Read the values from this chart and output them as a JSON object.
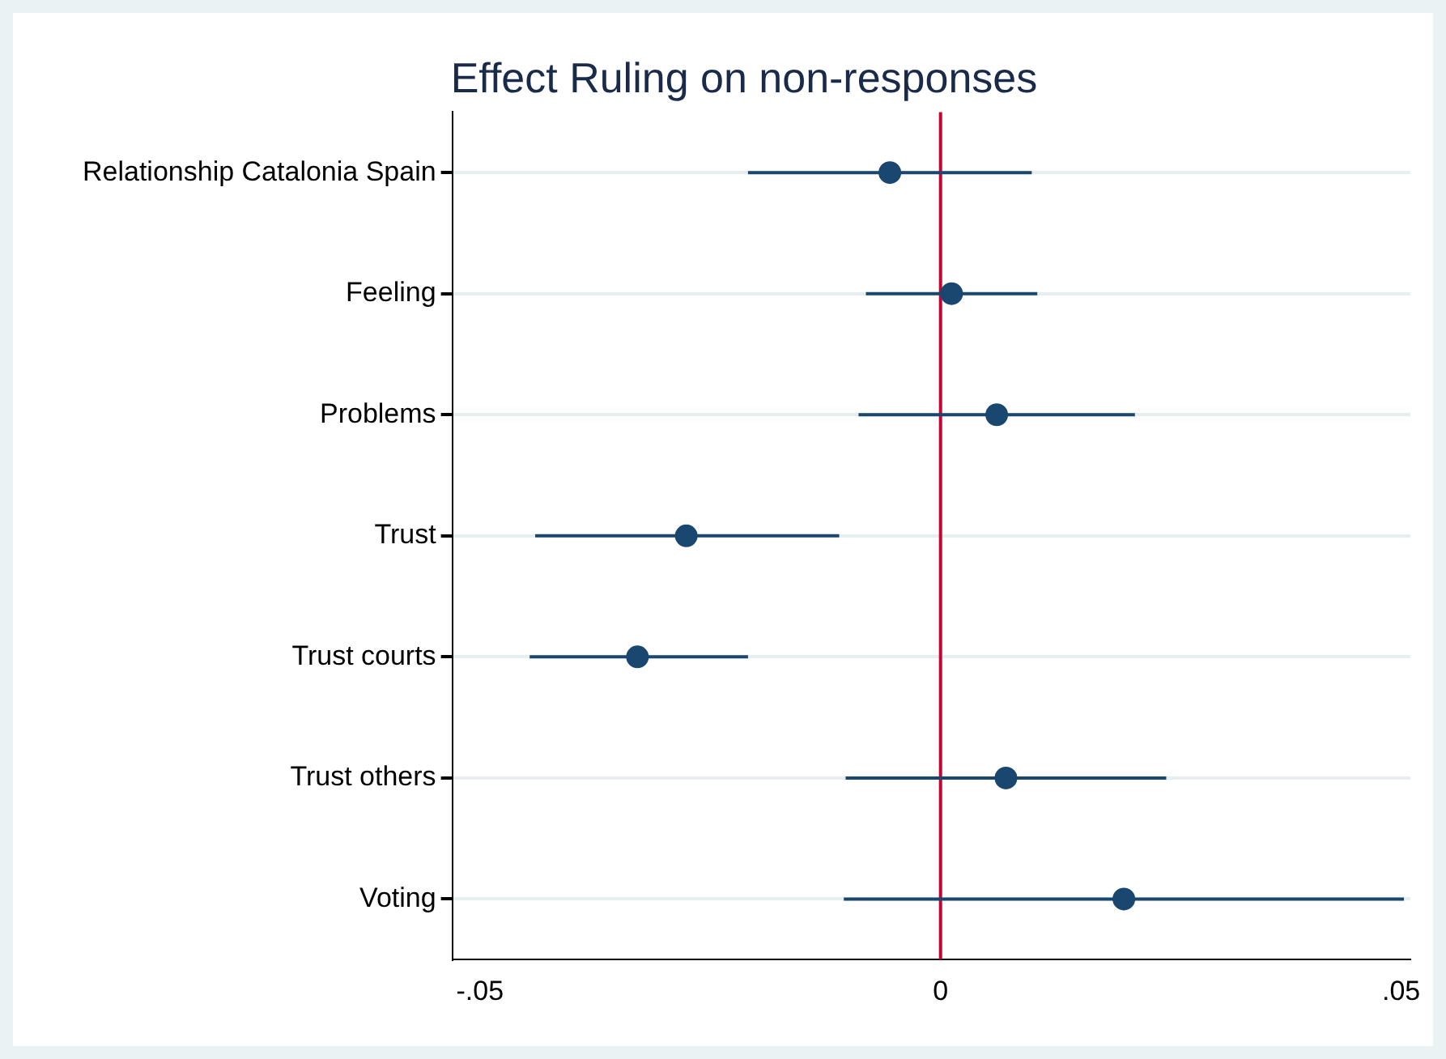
{
  "chart_data": {
    "type": "scatter",
    "title": "Effect Ruling on non-responses",
    "orientation": "horizontal",
    "categories": [
      "Relationship Catalonia Spain",
      "Feeling",
      "Problems",
      "Trust",
      "Trust courts",
      "Trust others",
      "Voting"
    ],
    "values": [
      -0.0055,
      0.0012,
      0.0061,
      -0.0276,
      -0.0329,
      0.0071,
      0.0199
    ],
    "errors": [
      [
        -0.0209,
        0.0099
      ],
      [
        -0.0081,
        0.0105
      ],
      [
        -0.0089,
        0.0211
      ],
      [
        -0.044,
        -0.011
      ],
      [
        -0.0446,
        -0.0209
      ],
      [
        -0.0103,
        0.0245
      ],
      [
        -0.0105,
        0.0503
      ]
    ],
    "color": "#1a476f",
    "marker": "circle",
    "xlim": [
      -0.053,
      0.051
    ],
    "xticks": [
      {
        "value": -0.05,
        "label": "-.05"
      },
      0,
      {
        "value": 0.05,
        "label": ".05"
      }
    ],
    "ref_lines": [
      {
        "axis": "x",
        "value": 0,
        "color": "#c10534"
      }
    ],
    "grid": "y",
    "legend": false
  }
}
